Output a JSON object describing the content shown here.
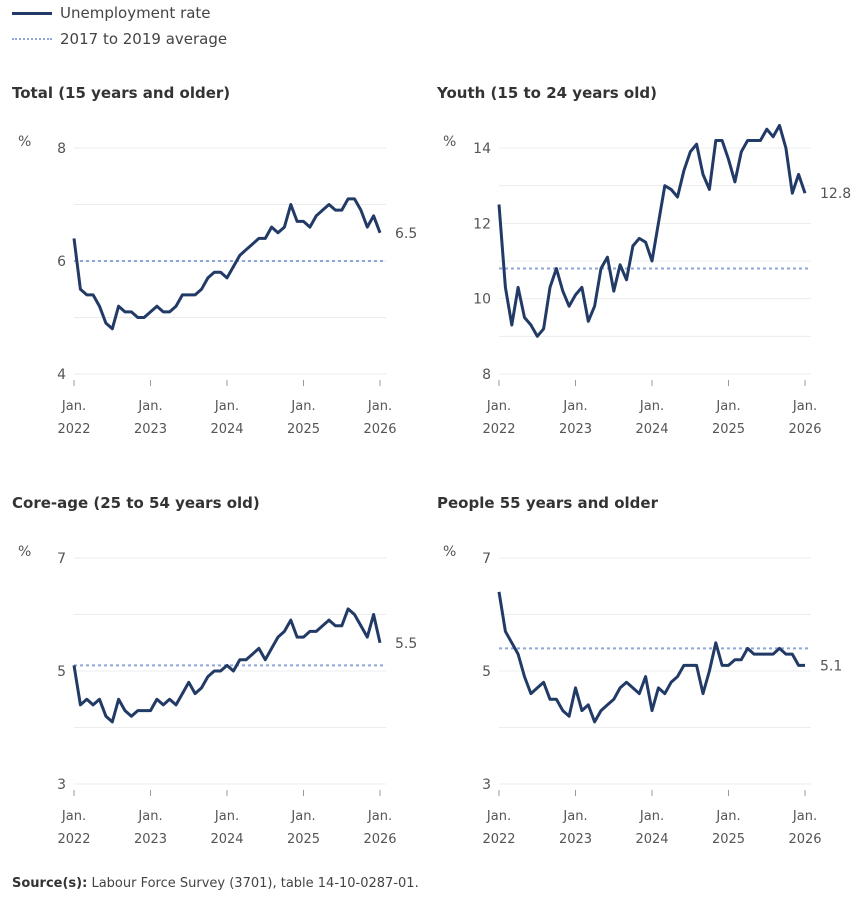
{
  "legend": {
    "series_label": "Unemployment rate",
    "average_label": "2017 to 2019 average"
  },
  "colors": {
    "line": "#223a66",
    "average": "#8ea6d9",
    "grid": "#ececec",
    "text": "#555555"
  },
  "source": {
    "label": "Source(s):",
    "text": " Labour Force Survey (3701), table 14-10-0287-01."
  },
  "chart_data": [
    {
      "type": "line",
      "title": "Total (15 years and older)",
      "ylabel": "%",
      "ylim": [
        4,
        8
      ],
      "yticks": [
        4,
        6,
        8
      ],
      "ygrid_step": 1,
      "xticks": [
        [
          "Jan.",
          "2022"
        ],
        [
          "Jan.",
          "2023"
        ],
        [
          "Jan.",
          "2024"
        ],
        [
          "Jan.",
          "2025"
        ],
        [
          "Jan.",
          "2026"
        ]
      ],
      "x_start": "Jan. 2022",
      "x_end": "Jan. 2026",
      "frequency": "monthly",
      "average": 6.0,
      "last_label": "6.5",
      "values": [
        6.4,
        5.5,
        5.4,
        5.4,
        5.2,
        4.9,
        4.8,
        5.2,
        5.1,
        5.1,
        5.0,
        5.0,
        5.1,
        5.2,
        5.1,
        5.1,
        5.2,
        5.4,
        5.4,
        5.4,
        5.5,
        5.7,
        5.8,
        5.8,
        5.7,
        5.9,
        6.1,
        6.2,
        6.3,
        6.4,
        6.4,
        6.6,
        6.5,
        6.6,
        7.0,
        6.7,
        6.7,
        6.6,
        6.8,
        6.9,
        7.0,
        6.9,
        6.9,
        7.1,
        7.1,
        6.9,
        6.6,
        6.8,
        6.5
      ]
    },
    {
      "type": "line",
      "title": "Youth (15 to 24 years old)",
      "ylabel": "%",
      "ylim": [
        8,
        14
      ],
      "yticks": [
        8,
        10,
        12,
        14
      ],
      "ygrid_step": 1,
      "xticks": [
        [
          "Jan.",
          "2022"
        ],
        [
          "Jan.",
          "2023"
        ],
        [
          "Jan.",
          "2024"
        ],
        [
          "Jan.",
          "2025"
        ],
        [
          "Jan.",
          "2026"
        ]
      ],
      "x_start": "Jan. 2022",
      "x_end": "Jan. 2026",
      "frequency": "monthly",
      "average": 10.8,
      "last_label": "12.8",
      "values": [
        12.5,
        10.3,
        9.3,
        10.3,
        9.5,
        9.3,
        9.0,
        9.2,
        10.3,
        10.8,
        10.2,
        9.8,
        10.1,
        10.3,
        9.4,
        9.8,
        10.8,
        11.1,
        10.2,
        10.9,
        10.5,
        11.4,
        11.6,
        11.5,
        11.0,
        12.0,
        13.0,
        12.9,
        12.7,
        13.4,
        13.9,
        14.1,
        13.3,
        12.9,
        14.2,
        14.2,
        13.7,
        13.1,
        13.9,
        14.2,
        14.2,
        14.2,
        14.5,
        14.3,
        14.6,
        14.0,
        12.8,
        13.3,
        12.8
      ]
    },
    {
      "type": "line",
      "title": "Core-age (25 to 54 years old)",
      "ylabel": "%",
      "ylim": [
        3,
        7
      ],
      "yticks": [
        3,
        5,
        7
      ],
      "ygrid_step": 1,
      "xticks": [
        [
          "Jan.",
          "2022"
        ],
        [
          "Jan.",
          "2023"
        ],
        [
          "Jan.",
          "2024"
        ],
        [
          "Jan.",
          "2025"
        ],
        [
          "Jan.",
          "2026"
        ]
      ],
      "x_start": "Jan. 2022",
      "x_end": "Jan. 2026",
      "frequency": "monthly",
      "average": 5.1,
      "last_label": "5.5",
      "values": [
        5.1,
        4.4,
        4.5,
        4.4,
        4.5,
        4.2,
        4.1,
        4.5,
        4.3,
        4.2,
        4.3,
        4.3,
        4.3,
        4.5,
        4.4,
        4.5,
        4.4,
        4.6,
        4.8,
        4.6,
        4.7,
        4.9,
        5.0,
        5.0,
        5.1,
        5.0,
        5.2,
        5.2,
        5.3,
        5.4,
        5.2,
        5.4,
        5.6,
        5.7,
        5.9,
        5.6,
        5.6,
        5.7,
        5.7,
        5.8,
        5.9,
        5.8,
        5.8,
        6.1,
        6.0,
        5.8,
        5.6,
        6.0,
        5.5
      ]
    },
    {
      "type": "line",
      "title": "People 55 years and older",
      "ylabel": "%",
      "ylim": [
        3,
        7
      ],
      "yticks": [
        3,
        5,
        7
      ],
      "ygrid_step": 1,
      "xticks": [
        [
          "Jan.",
          "2022"
        ],
        [
          "Jan.",
          "2023"
        ],
        [
          "Jan.",
          "2024"
        ],
        [
          "Jan.",
          "2025"
        ],
        [
          "Jan.",
          "2026"
        ]
      ],
      "x_start": "Jan. 2022",
      "x_end": "Jan. 2026",
      "frequency": "monthly",
      "average": 5.4,
      "last_label": "5.1",
      "values": [
        6.4,
        5.7,
        5.5,
        5.3,
        4.9,
        4.6,
        4.7,
        4.8,
        4.5,
        4.5,
        4.3,
        4.2,
        4.7,
        4.3,
        4.4,
        4.1,
        4.3,
        4.4,
        4.5,
        4.7,
        4.8,
        4.7,
        4.6,
        4.9,
        4.3,
        4.7,
        4.6,
        4.8,
        4.9,
        5.1,
        5.1,
        5.1,
        4.6,
        5.0,
        5.5,
        5.1,
        5.1,
        5.2,
        5.2,
        5.4,
        5.3,
        5.3,
        5.3,
        5.3,
        5.4,
        5.3,
        5.3,
        5.1,
        5.1
      ]
    }
  ]
}
